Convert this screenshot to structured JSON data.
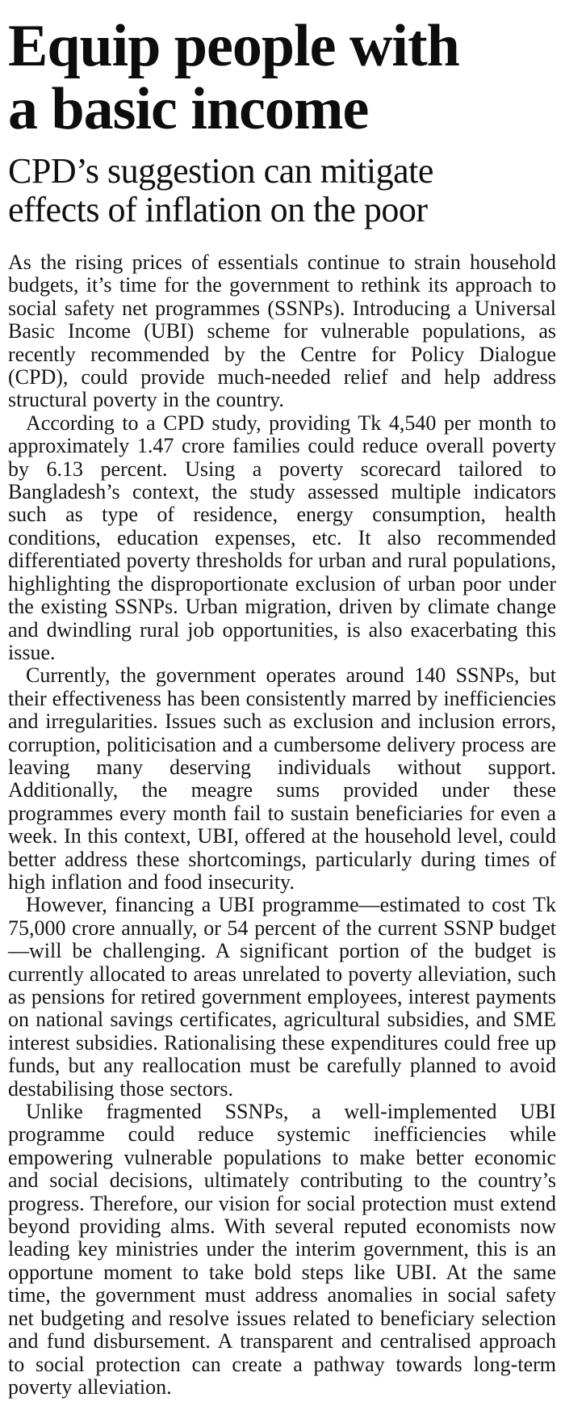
{
  "article": {
    "headline_lines": [
      "Equip people with",
      "a basic income"
    ],
    "subheadline_lines": [
      "CPD’s suggestion can mitigate",
      "effects of inflation on the poor"
    ],
    "paragraphs": [
      "As the rising prices of essentials continue to strain household budgets, it’s time for the government to rethink its approach to social safety net programmes (SSNPs). Introducing a Universal Basic Income (UBI) scheme for vulnerable populations, as recently recommended by the Centre for Policy Dialogue (CPD), could provide much-needed relief and help address structural poverty in the country.",
      "According to a CPD study, providing Tk 4,540 per month to approximately 1.47 crore families could reduce overall poverty by 6.13 percent. Using a poverty scorecard tailored to Bangladesh’s context, the study assessed multiple indicators such as type of residence, energy consumption, health conditions, education expenses, etc. It also recommended differentiated poverty thresholds for urban and rural populations, highlighting the disproportionate exclusion of urban poor under the existing SSNPs. Urban migration, driven by climate change and dwindling rural job opportunities, is also exacerbating this issue.",
      "Currently, the government operates around 140 SSNPs, but their effectiveness has been consistently marred by inefficiencies and irregularities. Issues such as exclusion and inclusion errors, corruption, politicisation and a cumbersome delivery process are leaving many deserving individuals without support. Additionally, the meagre sums provided under these programmes every month fail to sustain beneficiaries for even a week. In this context, UBI, offered at the household level, could better address these shortcomings, particularly during times of high inflation and food insecurity.",
      "However, financing a UBI programme—estimated to cost Tk 75,000 crore annually, or 54 percent of the current SSNP budget—will be challenging. A significant portion of the budget is currently allocated to areas unrelated to poverty alleviation, such as pensions for retired government employees, interest payments on national savings certificates, agricultural subsidies, and SME interest subsidies. Rationalising these expenditures could free up funds, but any reallocation must be carefully planned to avoid destabilising those sectors.",
      "Unlike fragmented SSNPs, a well-implemented UBI programme could reduce systemic inefficiencies while empowering vulnerable populations to make better economic and social decisions, ultimately contributing to the country’s progress. Therefore, our vision for social protection must extend beyond providing alms. With several reputed economists now leading key ministries under the interim government, this is an opportune moment to take bold steps like UBI. At the same time, the government must address anomalies in social safety net budgeting and resolve issues related to beneficiary selection and fund disbursement. A transparent and centralised approach to social protection can create a pathway towards long-term poverty alleviation."
    ]
  },
  "colors": {
    "background": "#ffffff",
    "headline_text": "#0d0d0d",
    "body_text": "#151515"
  }
}
